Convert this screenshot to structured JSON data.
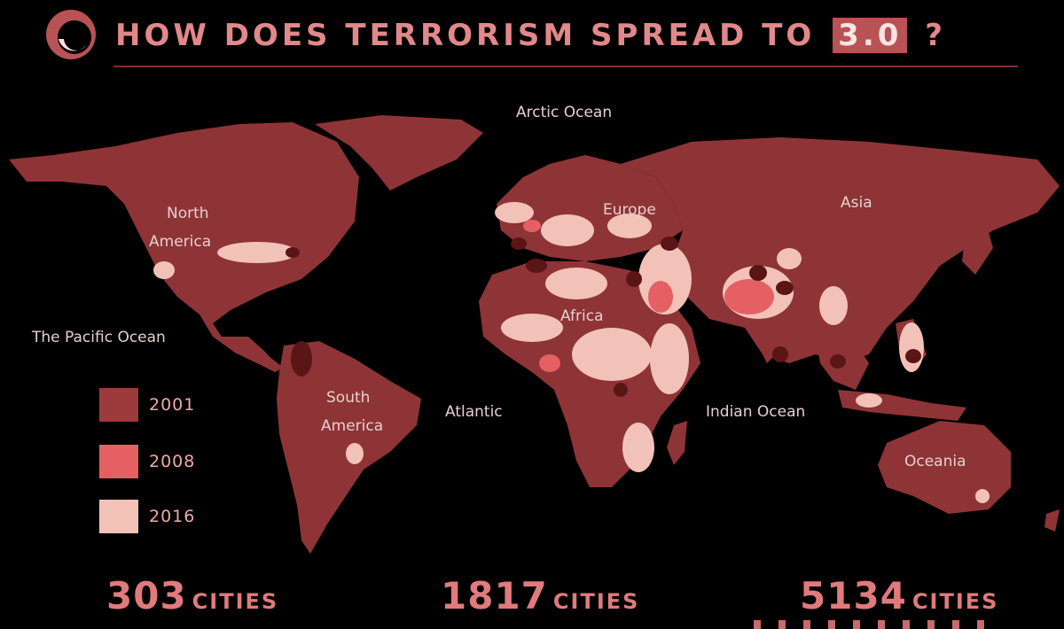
{
  "header": {
    "title_prefix": "How does terrorism spread to",
    "title_highlight": "3.0",
    "title_suffix": "?"
  },
  "map": {
    "labels": {
      "arctic": "Arctic Ocean",
      "north_america_1": "North",
      "north_america_2": "America",
      "europe": "Europe",
      "asia": "Asia",
      "pacific": "The Pacific Ocean",
      "africa": "Africa",
      "atlantic": "Atlantic",
      "south_america_1": "South",
      "south_america_2": "America",
      "indian": "Indian Ocean",
      "oceania": "Oceania"
    }
  },
  "legend": {
    "items": [
      {
        "label": "2001",
        "color": "#9d3a3c"
      },
      {
        "label": "2008",
        "color": "#e46063"
      },
      {
        "label": "2016",
        "color": "#f2c2b9"
      }
    ]
  },
  "stats": [
    {
      "value": "303",
      "unit": "Cities"
    },
    {
      "value": "1817",
      "unit": "Cities"
    },
    {
      "value": "5134",
      "unit": "Cities"
    }
  ],
  "colors": {
    "land": "#8e3436",
    "accent": "#b85254",
    "hotspot_dark": "#5a1517",
    "hotspot_2008": "#e46063",
    "hotspot_2016": "#f2c2b9"
  }
}
